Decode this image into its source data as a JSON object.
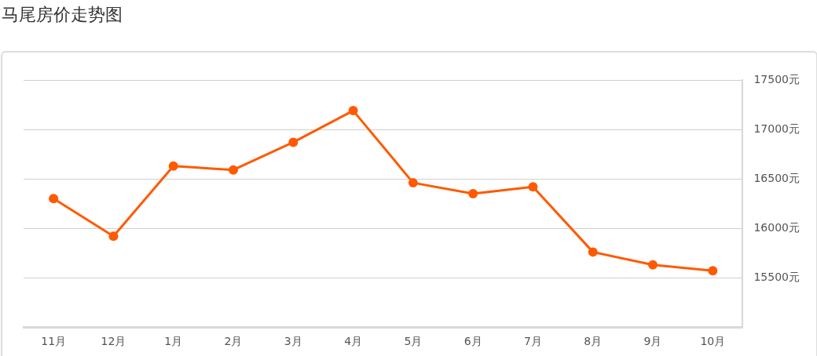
{
  "chart_data": {
    "type": "line",
    "title": "马尾房价走势图",
    "categories": [
      "11月",
      "12月",
      "1月",
      "2月",
      "3月",
      "4月",
      "5月",
      "6月",
      "7月",
      "8月",
      "9月",
      "10月"
    ],
    "series": [
      {
        "color": "#ff5a00",
        "values": [
          16300,
          15920,
          16630,
          16590,
          16870,
          17190,
          16460,
          16350,
          16420,
          15760,
          15630,
          15570
        ]
      }
    ],
    "ylim": [
      15000,
      17500
    ],
    "yticks": [
      {
        "value": 15500,
        "label": "15500元"
      },
      {
        "value": 16000,
        "label": "16000元"
      },
      {
        "value": 16500,
        "label": "16500元"
      },
      {
        "value": 17000,
        "label": "17000元"
      },
      {
        "value": 17500,
        "label": "17500元"
      }
    ],
    "grid": "y",
    "legend": false,
    "marker": "circle",
    "line_style": "solid"
  }
}
